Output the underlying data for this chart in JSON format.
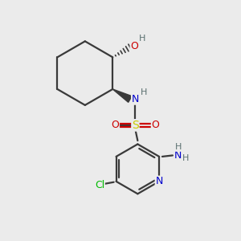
{
  "bg_color": "#ebebeb",
  "bond_color": "#3a3a3a",
  "atom_colors": {
    "N": "#0000cc",
    "O": "#cc0000",
    "S": "#cccc00",
    "Cl": "#00bb00",
    "C": "#3a3a3a",
    "H": "#5a7070"
  },
  "figure_size": [
    3.0,
    3.0
  ],
  "dpi": 100,
  "xlim": [
    0,
    10
  ],
  "ylim": [
    0,
    10
  ]
}
